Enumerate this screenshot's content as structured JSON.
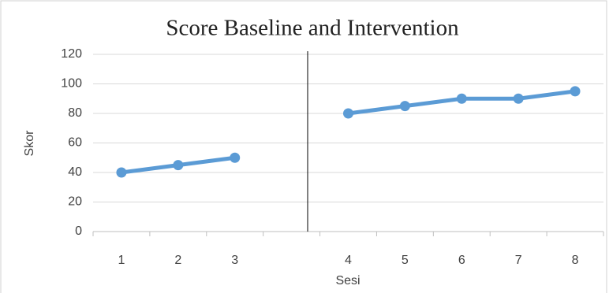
{
  "chart_data": {
    "type": "line",
    "title": "Score Baseline and Intervention",
    "x_label": "Sesi",
    "y_label": "Skor",
    "categories": [
      "1",
      "2",
      "3",
      null,
      "4",
      "5",
      "6",
      "7",
      "8"
    ],
    "series": [
      {
        "name": "Skor",
        "color": "#5b9bd5",
        "values": [
          40,
          45,
          50,
          null,
          80,
          85,
          90,
          90,
          95
        ]
      }
    ],
    "ylim": [
      0,
      120
    ],
    "yticks": [
      0,
      20,
      40,
      60,
      80,
      100,
      120
    ],
    "grid": true
  }
}
